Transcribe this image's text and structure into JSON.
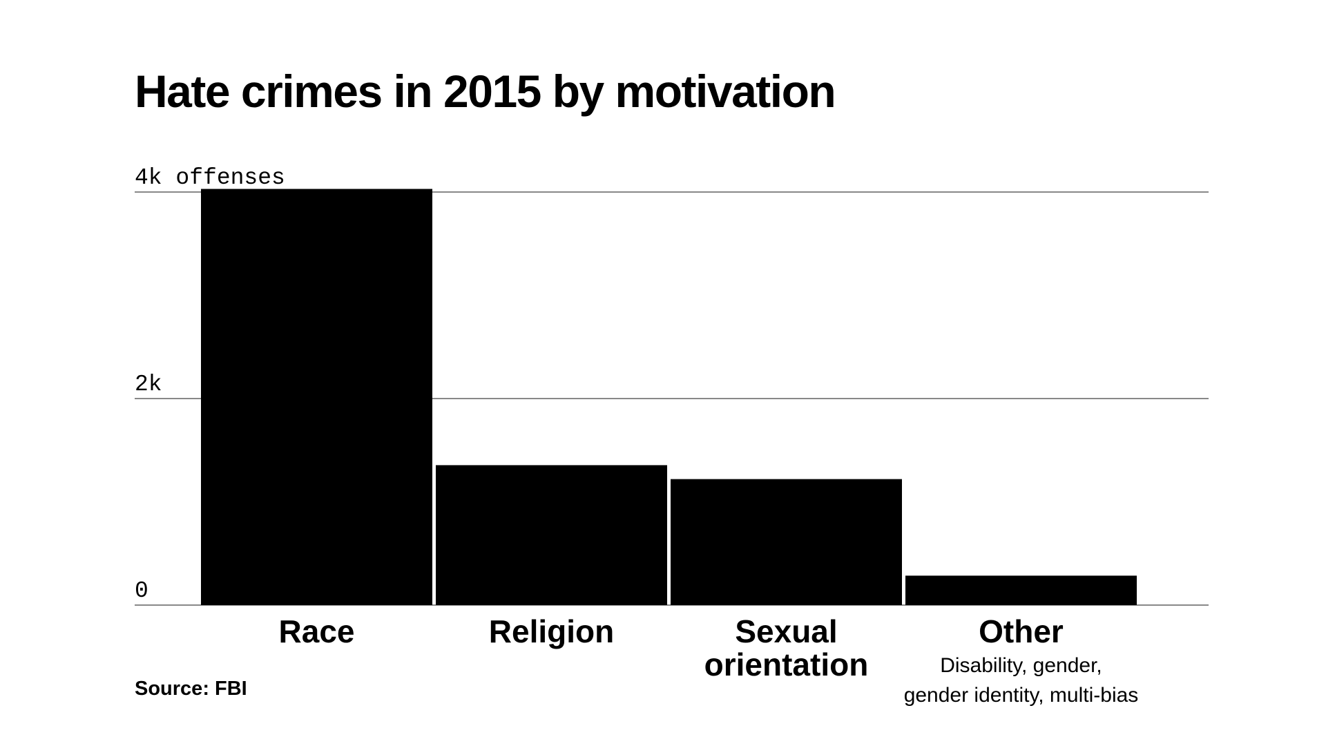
{
  "chart_data": {
    "type": "bar",
    "title": "Hate crimes in 2015 by motivation",
    "unit_label": "offenses",
    "categories": [
      "Race",
      "Religion",
      "Sexual orientation",
      "Other"
    ],
    "category_sublabels": [
      "",
      "",
      "",
      "Disability, gender, gender identity, multi-bias"
    ],
    "values": [
      4030,
      1355,
      1220,
      285
    ],
    "ylim": [
      0,
      4000
    ],
    "y_ticks": [
      {
        "value": 0,
        "label": "0"
      },
      {
        "value": 2000,
        "label": "2k"
      },
      {
        "value": 4000,
        "label": "4k offenses"
      }
    ],
    "grid": true,
    "bar_color": "#000000",
    "gridline_color": "#888888",
    "source": "Source: FBI"
  }
}
